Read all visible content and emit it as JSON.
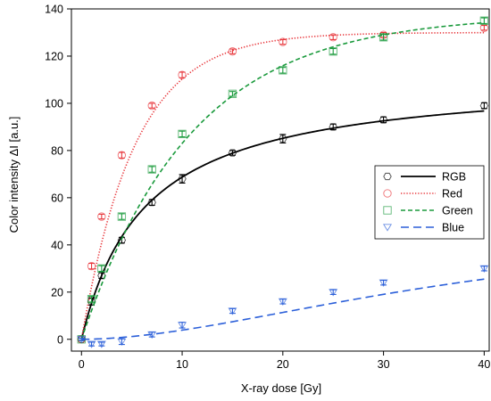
{
  "chart_data": {
    "type": "scatter",
    "xlabel": "X-ray dose [Gy]",
    "ylabel": "Color intensity ΔI [a.u.]",
    "xlim": [
      -1,
      40.5
    ],
    "ylim": [
      -5,
      140
    ],
    "x_ticks": [
      0,
      10,
      20,
      30,
      40
    ],
    "y_ticks": [
      0,
      20,
      40,
      60,
      80,
      100,
      120,
      140
    ],
    "grid": false,
    "legend_position": "right",
    "series": [
      {
        "name": "RGB",
        "color": "#000000",
        "marker": "hexagon",
        "line_style": "solid",
        "fit_function": "saturation",
        "fit_params": {
          "A": 112,
          "k": 6.3
        },
        "x": [
          0,
          1,
          2,
          4,
          7,
          10,
          15,
          20,
          25,
          30,
          40
        ],
        "y": [
          0,
          16,
          27,
          42,
          58,
          68,
          79,
          85,
          90,
          93,
          99
        ],
        "err": [
          0.5,
          1.5,
          1.2,
          1.2,
          1.2,
          1.8,
          1.0,
          1.8,
          1.2,
          1.2,
          1.2
        ]
      },
      {
        "name": "Red",
        "color": "#e8383d",
        "marker": "circle",
        "line_style": "dotted",
        "fit_function": "exponential",
        "fit_params": {
          "A": 130,
          "k": 5.3
        },
        "x": [
          0,
          1,
          2,
          4,
          7,
          10,
          15,
          20,
          25,
          30,
          40
        ],
        "y": [
          0,
          31,
          52,
          78,
          99,
          112,
          122,
          126,
          128,
          129,
          132
        ],
        "err": [
          0.5,
          1.2,
          1.0,
          1.2,
          1.0,
          1.2,
          1.0,
          1.0,
          1.0,
          1.0,
          1.0
        ]
      },
      {
        "name": "Green",
        "color": "#1a9a3c",
        "marker": "square",
        "line_style": "dashed",
        "fit_function": "exponential",
        "fit_params": {
          "A": 137.5,
          "k": 10.8
        },
        "x": [
          0,
          1,
          2,
          4,
          7,
          10,
          15,
          20,
          25,
          30,
          40
        ],
        "y": [
          0,
          17,
          30,
          52,
          72,
          87,
          104,
          114,
          122,
          128,
          135
        ],
        "err": [
          0.5,
          1.2,
          1.2,
          1.2,
          1.2,
          1.2,
          1.0,
          1.2,
          1.2,
          1.2,
          1.2
        ]
      },
      {
        "name": "Blue",
        "color": "#2b5fd9",
        "marker": "triangle-down",
        "line_style": "long-dashed",
        "fit_function": "sigmoid",
        "fit_params": {
          "A": 51,
          "tau": 40,
          "n": 1.8
        },
        "x": [
          0,
          1,
          2,
          4,
          7,
          10,
          15,
          20,
          25,
          30,
          40
        ],
        "y": [
          0,
          -2,
          -2,
          -1,
          2,
          6,
          12,
          16,
          20,
          24,
          30
        ],
        "err": [
          0.5,
          0.8,
          0.8,
          1.2,
          1.0,
          1.2,
          1.0,
          1.0,
          1.0,
          1.0,
          1.0
        ]
      }
    ]
  }
}
